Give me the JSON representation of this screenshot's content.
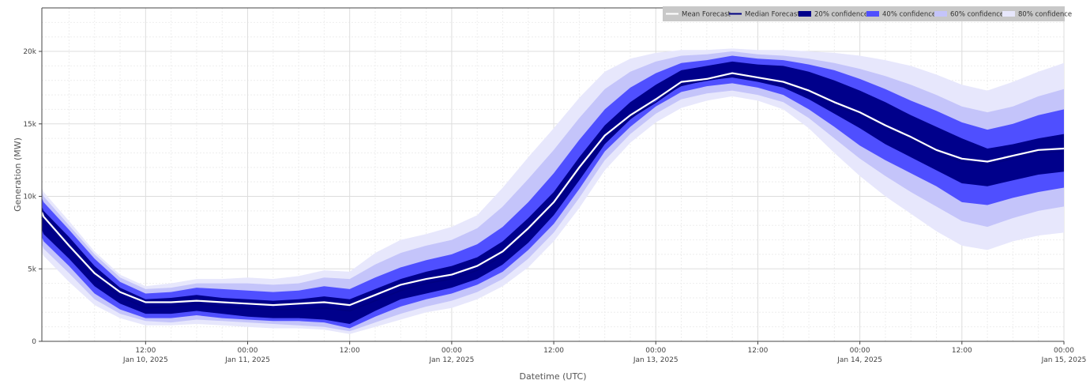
{
  "chart_data": {
    "type": "area",
    "title": "",
    "xlabel": "Datetime (UTC)",
    "ylabel": "Generation (MW)",
    "ylim": [
      0,
      23000
    ],
    "grid": true,
    "legend_position": "top-right",
    "x_ticks": [
      {
        "hour": 12,
        "line1": "12:00",
        "line2": "Jan 10, 2025"
      },
      {
        "hour": 24,
        "line1": "00:00",
        "line2": "Jan 11, 2025"
      },
      {
        "hour": 36,
        "line1": "12:00",
        "line2": ""
      },
      {
        "hour": 48,
        "line1": "00:00",
        "line2": "Jan 12, 2025"
      },
      {
        "hour": 60,
        "line1": "12:00",
        "line2": ""
      },
      {
        "hour": 72,
        "line1": "00:00",
        "line2": "Jan 13, 2025"
      },
      {
        "hour": 84,
        "line1": "12:00",
        "line2": ""
      },
      {
        "hour": 96,
        "line1": "00:00",
        "line2": "Jan 14, 2025"
      },
      {
        "hour": 108,
        "line1": "12:00",
        "line2": ""
      },
      {
        "hour": 120,
        "line1": "00:00",
        "line2": "Jan 15, 2025"
      }
    ],
    "y_ticks": [
      {
        "value": 0,
        "label": "0"
      },
      {
        "value": 5000,
        "label": "5k"
      },
      {
        "value": 10000,
        "label": "10k"
      },
      {
        "value": 15000,
        "label": "15k"
      },
      {
        "value": 20000,
        "label": "20k"
      }
    ],
    "x_range_hours": [
      -0.2,
      120
    ],
    "x_start": "Jan 9, 2025 23:48",
    "x": [
      "Jan 9 23:48",
      "Jan 10 00:00",
      "Jan 10 03:00",
      "Jan 10 06:00",
      "Jan 10 09:00",
      "Jan 10 12:00",
      "Jan 10 15:00",
      "Jan 10 18:00",
      "Jan 10 21:00",
      "Jan 11 00:00",
      "Jan 11 03:00",
      "Jan 11 06:00",
      "Jan 11 09:00",
      "Jan 11 12:00",
      "Jan 11 15:00",
      "Jan 11 18:00",
      "Jan 11 21:00",
      "Jan 12 00:00",
      "Jan 12 03:00",
      "Jan 12 06:00",
      "Jan 12 09:00",
      "Jan 12 12:00",
      "Jan 12 15:00",
      "Jan 12 18:00",
      "Jan 12 21:00",
      "Jan 13 00:00",
      "Jan 13 03:00",
      "Jan 13 06:00",
      "Jan 13 09:00",
      "Jan 13 12:00",
      "Jan 13 15:00",
      "Jan 13 18:00",
      "Jan 13 21:00",
      "Jan 14 00:00",
      "Jan 14 03:00",
      "Jan 14 06:00",
      "Jan 14 09:00",
      "Jan 14 12:00",
      "Jan 14 15:00",
      "Jan 14 18:00",
      "Jan 14 21:00",
      "Jan 15 00:00"
    ],
    "hours": [
      -0.2,
      0,
      3,
      6,
      9,
      12,
      15,
      18,
      21,
      24,
      27,
      30,
      33,
      36,
      39,
      42,
      45,
      48,
      51,
      54,
      57,
      60,
      63,
      66,
      69,
      72,
      75,
      78,
      81,
      84,
      87,
      90,
      93,
      96,
      99,
      102,
      105,
      108,
      111,
      114,
      117,
      120
    ],
    "series": [
      {
        "name": "Mean Forecast",
        "color": "#ffffff",
        "style": "line",
        "values": [
          8900,
          8600,
          6600,
          4700,
          3400,
          2700,
          2700,
          2800,
          2700,
          2600,
          2500,
          2600,
          2700,
          2500,
          3200,
          3900,
          4300,
          4600,
          5200,
          6200,
          7800,
          9600,
          12000,
          14200,
          15600,
          16700,
          17900,
          18100,
          18500,
          18200,
          17900,
          17300,
          16500,
          15800,
          14900,
          14100,
          13200,
          12600,
          12400,
          12800,
          13200,
          13300
        ]
      },
      {
        "name": "Median Forecast",
        "color": "#000080",
        "style": "line",
        "values": [
          8500,
          8200,
          6300,
          4400,
          3100,
          2300,
          2400,
          2600,
          2400,
          2300,
          2200,
          2200,
          2300,
          2100,
          2800,
          3500,
          4000,
          4300,
          4900,
          5900,
          7500,
          9300,
          11700,
          13900,
          15400,
          16500,
          17700,
          18000,
          18300,
          18000,
          17700,
          17100,
          16300,
          15600,
          14700,
          13900,
          13000,
          12400,
          12200,
          12600,
          13000,
          13100
        ]
      },
      {
        "name": "20% confidence",
        "color": "#00008b",
        "style": "band",
        "lower": [
          7700,
          7400,
          5700,
          3800,
          2600,
          1900,
          1900,
          2100,
          1900,
          1700,
          1600,
          1600,
          1500,
          1200,
          2100,
          2900,
          3300,
          3700,
          4300,
          5300,
          6800,
          8700,
          11100,
          13600,
          15300,
          16600,
          17600,
          18000,
          18200,
          17900,
          17500,
          16700,
          15700,
          14700,
          13600,
          12700,
          11800,
          10900,
          10700,
          11100,
          11500,
          11700
        ],
        "upper": [
          9300,
          9000,
          7200,
          5200,
          3700,
          2900,
          3000,
          3200,
          3000,
          2900,
          2800,
          2900,
          3100,
          2900,
          3600,
          4300,
          4800,
          5200,
          5800,
          6900,
          8500,
          10300,
          12700,
          14900,
          16500,
          17700,
          18700,
          19000,
          19300,
          19100,
          19000,
          18600,
          18000,
          17300,
          16500,
          15600,
          14800,
          14000,
          13300,
          13600,
          14000,
          14300
        ]
      },
      {
        "name": "40% confidence",
        "color": "#4f4fff",
        "style": "band",
        "lower": [
          7200,
          6900,
          5200,
          3300,
          2200,
          1600,
          1600,
          1800,
          1600,
          1500,
          1400,
          1400,
          1300,
          900,
          1700,
          2400,
          2900,
          3300,
          3900,
          4800,
          6300,
          8100,
          10500,
          13100,
          14800,
          16200,
          17200,
          17600,
          17800,
          17500,
          17000,
          16000,
          14800,
          13500,
          12500,
          11600,
          10700,
          9600,
          9400,
          9900,
          10300,
          10600
        ]
      },
      {
        "name": "60% confidence",
        "color": "#c4c4fa",
        "style": "band",
        "lower": [
          6700,
          6400,
          4700,
          2900,
          1900,
          1400,
          1300,
          1500,
          1400,
          1300,
          1200,
          1100,
          1000,
          700,
          1300,
          1900,
          2400,
          2800,
          3400,
          4300,
          5700,
          7500,
          9900,
          12500,
          14300,
          15700,
          16700,
          17100,
          17300,
          17000,
          16500,
          15400,
          14000,
          12600,
          11400,
          10300,
          9300,
          8300,
          7900,
          8500,
          9000,
          9300
        ]
      },
      {
        "name": "80% confidence",
        "color": "#e7e7fc",
        "style": "band",
        "lower": [
          6200,
          5900,
          4100,
          2500,
          1600,
          1100,
          1100,
          1200,
          1100,
          1000,
          900,
          900,
          800,
          500,
          1000,
          1500,
          2000,
          2300,
          2900,
          3800,
          5100,
          6900,
          9200,
          11800,
          13700,
          15100,
          16100,
          16600,
          16900,
          16600,
          16000,
          14700,
          13000,
          11400,
          10000,
          8800,
          7600,
          6600,
          6300,
          6900,
          7300,
          7500
        ],
        "upper": [
          10600,
          10300,
          8300,
          6200,
          4600,
          3800,
          4000,
          4300,
          4300,
          4400,
          4300,
          4500,
          4900,
          4800,
          6100,
          7000,
          7400,
          7900,
          8700,
          10600,
          12700,
          14700,
          16800,
          18600,
          19500,
          19900,
          20100,
          20100,
          20200,
          20100,
          20100,
          20000,
          19900,
          19700,
          19400,
          19000,
          18400,
          17700,
          17300,
          17900,
          18600,
          19200
        ]
      }
    ],
    "bands_upper_40": [
      9900,
      9600,
      7700,
      5700,
      4100,
      3300,
      3400,
      3700,
      3600,
      3500,
      3400,
      3500,
      3800,
      3600,
      4400,
      5100,
      5600,
      6000,
      6700,
      7900,
      9600,
      11600,
      13900,
      16000,
      17500,
      18500,
      19200,
      19400,
      19700,
      19500,
      19400,
      19100,
      18700,
      18100,
      17400,
      16600,
      15900,
      15100,
      14600,
      15000,
      15600,
      16000
    ],
    "bands_upper_60": [
      10300,
      10000,
      8000,
      6000,
      4400,
      3600,
      3700,
      4000,
      4000,
      4000,
      3900,
      4000,
      4400,
      4300,
      5300,
      6100,
      6600,
      7000,
      7800,
      9300,
      11200,
      13200,
      15400,
      17400,
      18600,
      19300,
      19700,
      19800,
      20000,
      19800,
      19700,
      19500,
      19200,
      18800,
      18300,
      17700,
      17000,
      16200,
      15800,
      16200,
      16900,
      17400
    ]
  },
  "legend": [
    {
      "label": "Mean Forecast",
      "swatch": "line",
      "color": "#ffffff"
    },
    {
      "label": "Median Forecast",
      "swatch": "line",
      "color": "#000080"
    },
    {
      "label": "20% confidence",
      "swatch": "box",
      "color": "#00008b"
    },
    {
      "label": "40% confidence",
      "swatch": "box",
      "color": "#4f4fff"
    },
    {
      "label": "60% confidence",
      "swatch": "box",
      "color": "#c4c4fa"
    },
    {
      "label": "80% confidence",
      "swatch": "box",
      "color": "#e7e7fc"
    }
  ],
  "colors": {
    "grid": "#dddddd",
    "legend_bg": "#c8c8c8",
    "axis_line": "#444444"
  }
}
